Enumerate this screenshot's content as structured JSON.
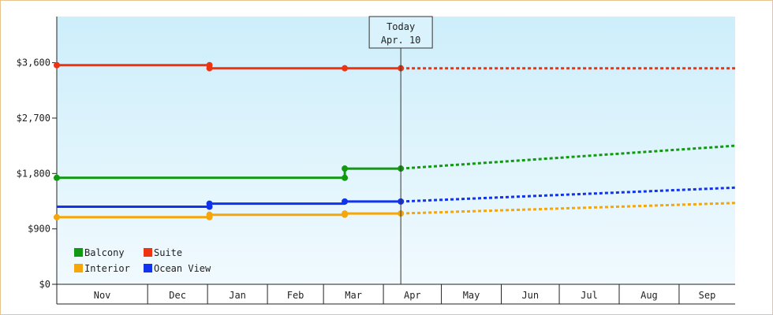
{
  "chart_data": {
    "type": "line",
    "title": "",
    "xlabel": "",
    "ylabel": "",
    "ylim": [
      0,
      4350
    ],
    "y_ticks": [
      {
        "value": 0,
        "label": "$0"
      },
      {
        "value": 900,
        "label": "$900"
      },
      {
        "value": 1800,
        "label": "$1,800"
      },
      {
        "value": 2700,
        "label": "$2,700"
      },
      {
        "value": 3600,
        "label": "$3,600"
      }
    ],
    "x_start": "2023-10-15",
    "x_end": "2024-09-30",
    "months": [
      {
        "label": "Nov",
        "start": "2023-10-15",
        "end": "2023-12-01"
      },
      {
        "label": "Dec",
        "start": "2023-12-01",
        "end": "2024-01-01"
      },
      {
        "label": "Jan",
        "start": "2024-01-01",
        "end": "2024-02-01"
      },
      {
        "label": "Feb",
        "start": "2024-02-01",
        "end": "2024-03-01"
      },
      {
        "label": "Mar",
        "start": "2024-03-01",
        "end": "2024-04-01"
      },
      {
        "label": "Apr",
        "start": "2024-04-01",
        "end": "2024-05-01"
      },
      {
        "label": "May",
        "start": "2024-05-01",
        "end": "2024-06-01"
      },
      {
        "label": "Jun",
        "start": "2024-06-01",
        "end": "2024-07-01"
      },
      {
        "label": "Jul",
        "start": "2024-07-01",
        "end": "2024-08-01"
      },
      {
        "label": "Aug",
        "start": "2024-08-01",
        "end": "2024-09-01"
      },
      {
        "label": "Sep",
        "start": "2024-09-01",
        "end": "2024-09-30"
      }
    ],
    "today": {
      "line1": "Today",
      "line2": "Apr. 10",
      "date": "2024-04-10"
    },
    "grid": false,
    "legend_position": "bottom-left",
    "series": [
      {
        "name": "Suite",
        "color": "#ee3311",
        "points": [
          {
            "date": "2023-10-15",
            "value": 3560
          },
          {
            "date": "2024-01-02",
            "value": 3560
          },
          {
            "date": "2024-01-02",
            "value": 3510
          },
          {
            "date": "2024-03-12",
            "value": 3510
          },
          {
            "date": "2024-04-10",
            "value": 3510
          }
        ],
        "markers": [
          {
            "date": "2023-10-15",
            "value": 3560
          },
          {
            "date": "2024-01-02",
            "value": 3560
          },
          {
            "date": "2024-01-02",
            "value": 3510
          },
          {
            "date": "2024-03-12",
            "value": 3510
          },
          {
            "date": "2024-04-10",
            "value": 3510
          }
        ],
        "forecast": [
          {
            "date": "2024-04-10",
            "value": 3510
          },
          {
            "date": "2024-09-30",
            "value": 3510
          }
        ]
      },
      {
        "name": "Balcony",
        "color": "#119911",
        "points": [
          {
            "date": "2023-10-15",
            "value": 1730
          },
          {
            "date": "2024-03-12",
            "value": 1730
          },
          {
            "date": "2024-03-12",
            "value": 1880
          },
          {
            "date": "2024-04-10",
            "value": 1880
          }
        ],
        "markers": [
          {
            "date": "2023-10-15",
            "value": 1730
          },
          {
            "date": "2024-03-12",
            "value": 1730
          },
          {
            "date": "2024-03-12",
            "value": 1880
          },
          {
            "date": "2024-04-10",
            "value": 1880
          }
        ],
        "forecast": [
          {
            "date": "2024-04-10",
            "value": 1880
          },
          {
            "date": "2024-09-30",
            "value": 2250
          }
        ]
      },
      {
        "name": "Ocean View",
        "color": "#1133ee",
        "points": [
          {
            "date": "2023-10-15",
            "value": 1260
          },
          {
            "date": "2024-01-02",
            "value": 1260
          },
          {
            "date": "2024-01-02",
            "value": 1310
          },
          {
            "date": "2024-03-12",
            "value": 1310
          },
          {
            "date": "2024-03-12",
            "value": 1345
          },
          {
            "date": "2024-04-10",
            "value": 1345
          }
        ],
        "markers": [
          {
            "date": "2024-01-02",
            "value": 1260
          },
          {
            "date": "2024-01-02",
            "value": 1310
          },
          {
            "date": "2024-03-12",
            "value": 1345
          },
          {
            "date": "2024-04-10",
            "value": 1345
          }
        ],
        "forecast": [
          {
            "date": "2024-04-10",
            "value": 1345
          },
          {
            "date": "2024-09-30",
            "value": 1570
          }
        ]
      },
      {
        "name": "Interior",
        "color": "#f5a60a",
        "points": [
          {
            "date": "2023-10-15",
            "value": 1090
          },
          {
            "date": "2024-01-02",
            "value": 1090
          },
          {
            "date": "2024-01-02",
            "value": 1130
          },
          {
            "date": "2024-03-12",
            "value": 1130
          },
          {
            "date": "2024-03-12",
            "value": 1150
          },
          {
            "date": "2024-04-10",
            "value": 1150
          }
        ],
        "markers": [
          {
            "date": "2023-10-15",
            "value": 1090
          },
          {
            "date": "2024-01-02",
            "value": 1090
          },
          {
            "date": "2024-01-02",
            "value": 1130
          },
          {
            "date": "2024-03-12",
            "value": 1130
          },
          {
            "date": "2024-03-12",
            "value": 1150
          },
          {
            "date": "2024-04-10",
            "value": 1150
          }
        ],
        "forecast": [
          {
            "date": "2024-04-10",
            "value": 1150
          },
          {
            "date": "2024-09-30",
            "value": 1320
          }
        ]
      }
    ],
    "legend": [
      {
        "name": "Balcony",
        "color": "#119911"
      },
      {
        "name": "Suite",
        "color": "#ee3311"
      },
      {
        "name": "Interior",
        "color": "#f5a60a"
      },
      {
        "name": "Ocean View",
        "color": "#1133ee"
      }
    ]
  }
}
